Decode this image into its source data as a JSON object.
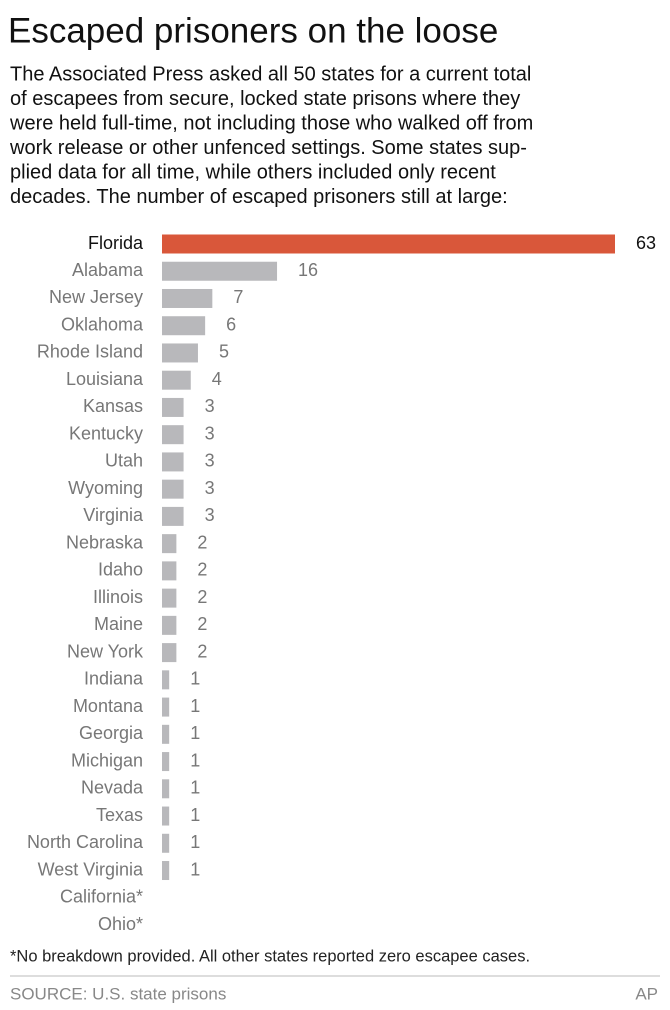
{
  "chart_data": {
    "type": "bar",
    "orientation": "horizontal",
    "title": "Escaped prisoners on the loose",
    "subtitle": [
      "The Associated Press asked all 50 states for a current total",
      "of escapees from secure, locked state prisons where they",
      "were held full-time, not including those who walked off from",
      "work release or other unfenced settings. Some states sup-",
      "plied data for all time, while others included only recent",
      "decades. The number of escaped prisoners still at large:"
    ],
    "categories": [
      "Florida",
      "Alabama",
      "New Jersey",
      "Oklahoma",
      "Rhode Island",
      "Louisiana",
      "Kansas",
      "Kentucky",
      "Utah",
      "Wyoming",
      "Virginia",
      "Nebraska",
      "Idaho",
      "Illinois",
      "Maine",
      "New York",
      "Indiana",
      "Montana",
      "Georgia",
      "Michigan",
      "Nevada",
      "Texas",
      "North Carolina",
      "West Virginia",
      "California*",
      "Ohio*"
    ],
    "values": [
      63,
      16,
      7,
      6,
      5,
      4,
      3,
      3,
      3,
      3,
      3,
      2,
      2,
      2,
      2,
      2,
      1,
      1,
      1,
      1,
      1,
      1,
      1,
      1,
      null,
      null
    ],
    "colors": [
      "#d9573a",
      "#b8b8bb",
      "#b8b8bb",
      "#b8b8bb",
      "#b8b8bb",
      "#b8b8bb",
      "#b8b8bb",
      "#b8b8bb",
      "#b8b8bb",
      "#b8b8bb",
      "#b8b8bb",
      "#b8b8bb",
      "#b8b8bb",
      "#b8b8bb",
      "#b8b8bb",
      "#b8b8bb",
      "#b8b8bb",
      "#b8b8bb",
      "#b8b8bb",
      "#b8b8bb",
      "#b8b8bb",
      "#b8b8bb",
      "#b8b8bb",
      "#b8b8bb",
      "#b8b8bb",
      "#b8b8bb"
    ],
    "label_colors": [
      "#111111",
      "#777777",
      "#777777",
      "#777777",
      "#777777",
      "#777777",
      "#777777",
      "#777777",
      "#777777",
      "#777777",
      "#777777",
      "#777777",
      "#777777",
      "#777777",
      "#777777",
      "#777777",
      "#777777",
      "#777777",
      "#777777",
      "#777777",
      "#777777",
      "#777777",
      "#777777",
      "#777777",
      "#777777",
      "#777777"
    ],
    "xlim": [
      0,
      63
    ],
    "footnote": "*No breakdown provided. All other states reported zero escapee cases.",
    "source": "SOURCE: U.S. state prisons",
    "credit": "AP"
  }
}
